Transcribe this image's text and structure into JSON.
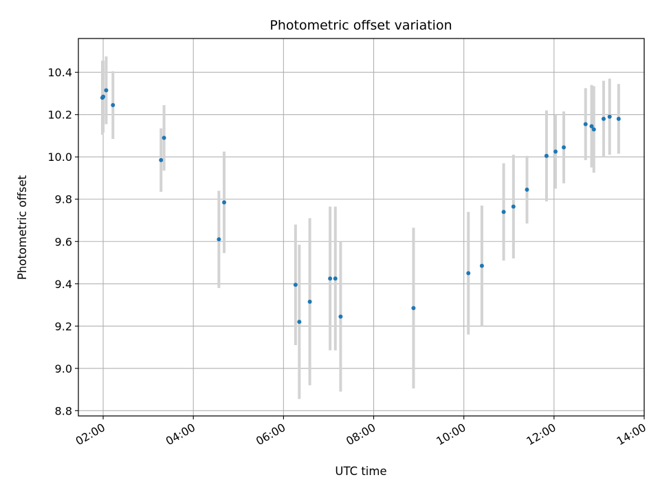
{
  "chart_data": {
    "type": "scatter",
    "title": "Photometric offset variation",
    "xlabel": "UTC time",
    "ylabel": "Photometric offset",
    "xlim": [
      "01:27",
      "14:00"
    ],
    "ylim": [
      8.775,
      10.56
    ],
    "grid": true,
    "x_ticks": [
      "02:00",
      "04:00",
      "06:00",
      "08:00",
      "10:00",
      "12:00",
      "14:00"
    ],
    "y_ticks": [
      "8.8",
      "9.0",
      "9.2",
      "9.4",
      "9.6",
      "9.8",
      "10.0",
      "10.2",
      "10.4"
    ],
    "x_unit": "UTC time (HH:MM)",
    "series": [
      {
        "marker_color": "#1f77b4",
        "errorbar_color": "#d3d3d3",
        "points": [
          {
            "x": "01:59",
            "y": 10.28,
            "yerr": 0.175
          },
          {
            "x": "02:00",
            "y": 10.285,
            "yerr": 0.17
          },
          {
            "x": "02:04",
            "y": 10.315,
            "yerr": 0.16
          },
          {
            "x": "02:13",
            "y": 10.245,
            "yerr": 0.16
          },
          {
            "x": "03:17",
            "y": 9.985,
            "yerr": 0.15
          },
          {
            "x": "03:21",
            "y": 10.09,
            "yerr": 0.155
          },
          {
            "x": "04:34",
            "y": 9.61,
            "yerr": 0.23
          },
          {
            "x": "04:41",
            "y": 9.785,
            "yerr": 0.24
          },
          {
            "x": "06:16",
            "y": 9.395,
            "yerr": 0.285
          },
          {
            "x": "06:21",
            "y": 9.22,
            "yerr": 0.365
          },
          {
            "x": "06:35",
            "y": 9.315,
            "yerr": 0.395
          },
          {
            "x": "07:02",
            "y": 9.425,
            "yerr": 0.34
          },
          {
            "x": "07:09",
            "y": 9.425,
            "yerr": 0.34
          },
          {
            "x": "07:16",
            "y": 9.245,
            "yerr": 0.355
          },
          {
            "x": "08:53",
            "y": 9.285,
            "yerr": 0.38
          },
          {
            "x": "10:06",
            "y": 9.45,
            "yerr": 0.29
          },
          {
            "x": "10:24",
            "y": 9.485,
            "yerr": 0.285
          },
          {
            "x": "10:53",
            "y": 9.74,
            "yerr": 0.23
          },
          {
            "x": "11:06",
            "y": 9.765,
            "yerr": 0.245
          },
          {
            "x": "11:24",
            "y": 9.845,
            "yerr": 0.16
          },
          {
            "x": "11:50",
            "y": 10.005,
            "yerr": 0.215
          },
          {
            "x": "12:02",
            "y": 10.025,
            "yerr": 0.175
          },
          {
            "x": "12:13",
            "y": 10.045,
            "yerr": 0.17
          },
          {
            "x": "12:42",
            "y": 10.155,
            "yerr": 0.17
          },
          {
            "x": "12:50",
            "y": 10.145,
            "yerr": 0.195
          },
          {
            "x": "12:53",
            "y": 10.13,
            "yerr": 0.205
          },
          {
            "x": "13:06",
            "y": 10.18,
            "yerr": 0.18
          },
          {
            "x": "13:14",
            "y": 10.19,
            "yerr": 0.18
          },
          {
            "x": "13:26",
            "y": 10.18,
            "yerr": 0.165
          }
        ]
      }
    ]
  }
}
